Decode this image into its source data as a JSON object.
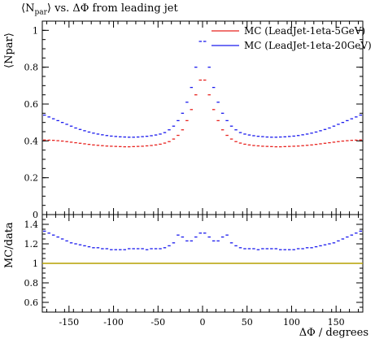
{
  "title_parts": {
    "npar": "⟨N",
    "sub": "par",
    "close": "⟩",
    "rest": " vs. ΔΦ from leading jet"
  },
  "chart_data": [
    {
      "type": "scatter",
      "panel": "main",
      "title": "⟨Npar⟩ vs. ΔΦ from leading jet",
      "ylabel": "⟨Npar⟩",
      "xlim": [
        -180,
        180
      ],
      "ylim": [
        0,
        1.05
      ],
      "yticks": [
        0,
        0.2,
        0.4,
        0.6,
        0.8,
        1
      ],
      "ytick_labels": [
        "0",
        "0.2",
        "0.4",
        "0.6",
        "0.8",
        "1"
      ],
      "legend_position": "top-right",
      "colors": {
        "red": "#e8231f",
        "blue": "#1a1aee"
      },
      "x": [
        -177.5,
        -172.5,
        -167.5,
        -162.5,
        -157.5,
        -152.5,
        -147.5,
        -142.5,
        -137.5,
        -132.5,
        -127.5,
        -122.5,
        -117.5,
        -112.5,
        -107.5,
        -102.5,
        -97.5,
        -92.5,
        -87.5,
        -82.5,
        -77.5,
        -72.5,
        -67.5,
        -62.5,
        -57.5,
        -52.5,
        -47.5,
        -42.5,
        -37.5,
        -32.5,
        -27.5,
        -22.5,
        -17.5,
        -12.5,
        -7.5,
        -2.5,
        2.5,
        7.5,
        12.5,
        17.5,
        22.5,
        27.5,
        32.5,
        37.5,
        42.5,
        47.5,
        52.5,
        57.5,
        62.5,
        67.5,
        72.5,
        77.5,
        82.5,
        87.5,
        92.5,
        97.5,
        102.5,
        107.5,
        112.5,
        117.5,
        122.5,
        127.5,
        132.5,
        137.5,
        142.5,
        147.5,
        152.5,
        157.5,
        162.5,
        167.5,
        172.5,
        177.5
      ],
      "series": [
        {
          "name": "MC (LeadJet-1eta-5GeV)",
          "color": "#e8231f",
          "values": [
            0.405,
            0.404,
            0.403,
            0.401,
            0.399,
            0.396,
            0.393,
            0.39,
            0.387,
            0.384,
            0.381,
            0.378,
            0.376,
            0.374,
            0.372,
            0.371,
            0.37,
            0.369,
            0.368,
            0.368,
            0.369,
            0.37,
            0.371,
            0.373,
            0.375,
            0.378,
            0.382,
            0.388,
            0.396,
            0.41,
            0.43,
            0.46,
            0.51,
            0.57,
            0.65,
            0.73,
            0.73,
            0.65,
            0.57,
            0.51,
            0.46,
            0.43,
            0.41,
            0.396,
            0.388,
            0.382,
            0.378,
            0.375,
            0.373,
            0.371,
            0.37,
            0.369,
            0.368,
            0.368,
            0.369,
            0.37,
            0.371,
            0.372,
            0.374,
            0.376,
            0.378,
            0.381,
            0.384,
            0.387,
            0.39,
            0.393,
            0.396,
            0.399,
            0.401,
            0.403,
            0.404,
            0.405
          ]
        },
        {
          "name": "MC (LeadJet-1eta-20GeV)",
          "color": "#1a1aee",
          "values": [
            0.54,
            0.53,
            0.52,
            0.51,
            0.5,
            0.49,
            0.48,
            0.47,
            0.462,
            0.455,
            0.448,
            0.442,
            0.437,
            0.433,
            0.429,
            0.426,
            0.424,
            0.422,
            0.421,
            0.42,
            0.42,
            0.421,
            0.423,
            0.425,
            0.428,
            0.432,
            0.437,
            0.445,
            0.46,
            0.48,
            0.51,
            0.55,
            0.61,
            0.69,
            0.8,
            0.94,
            0.94,
            0.8,
            0.69,
            0.61,
            0.55,
            0.51,
            0.48,
            0.46,
            0.445,
            0.437,
            0.432,
            0.428,
            0.425,
            0.423,
            0.421,
            0.42,
            0.42,
            0.421,
            0.422,
            0.424,
            0.426,
            0.429,
            0.433,
            0.437,
            0.442,
            0.448,
            0.455,
            0.462,
            0.47,
            0.48,
            0.49,
            0.5,
            0.51,
            0.52,
            0.53,
            0.54
          ]
        }
      ]
    },
    {
      "type": "scatter",
      "panel": "ratio",
      "ylabel": "MC/data",
      "xlabel": "ΔΦ / degrees",
      "xlim": [
        -180,
        180
      ],
      "ylim": [
        0.5,
        1.5
      ],
      "yticks": [
        0.6,
        0.8,
        1,
        1.2,
        1.4
      ],
      "ytick_labels": [
        "0.6",
        "0.8",
        "1",
        "1.2",
        "1.4"
      ],
      "xticks": [
        -150,
        -100,
        -50,
        0,
        50,
        100,
        150
      ],
      "xtick_labels": [
        "-150",
        "-100",
        "-50",
        "0",
        "50",
        "100",
        "150"
      ],
      "reference_line": {
        "y": 1.0,
        "color": "#b5a000"
      },
      "x": [
        -177.5,
        -172.5,
        -167.5,
        -162.5,
        -157.5,
        -152.5,
        -147.5,
        -142.5,
        -137.5,
        -132.5,
        -127.5,
        -122.5,
        -117.5,
        -112.5,
        -107.5,
        -102.5,
        -97.5,
        -92.5,
        -87.5,
        -82.5,
        -77.5,
        -72.5,
        -67.5,
        -62.5,
        -57.5,
        -52.5,
        -47.5,
        -42.5,
        -37.5,
        -32.5,
        -27.5,
        -22.5,
        -17.5,
        -12.5,
        -7.5,
        -2.5,
        2.5,
        7.5,
        12.5,
        17.5,
        22.5,
        27.5,
        32.5,
        37.5,
        42.5,
        47.5,
        52.5,
        57.5,
        62.5,
        67.5,
        72.5,
        77.5,
        82.5,
        87.5,
        92.5,
        97.5,
        102.5,
        107.5,
        112.5,
        117.5,
        122.5,
        127.5,
        132.5,
        137.5,
        142.5,
        147.5,
        152.5,
        157.5,
        162.5,
        167.5,
        172.5,
        177.5
      ],
      "series": [
        {
          "name": "",
          "color": "#1a1aee",
          "values": [
            1.33,
            1.31,
            1.29,
            1.27,
            1.25,
            1.23,
            1.21,
            1.2,
            1.19,
            1.18,
            1.17,
            1.16,
            1.16,
            1.15,
            1.15,
            1.14,
            1.14,
            1.14,
            1.14,
            1.15,
            1.15,
            1.15,
            1.15,
            1.14,
            1.15,
            1.15,
            1.15,
            1.16,
            1.18,
            1.21,
            1.29,
            1.27,
            1.23,
            1.23,
            1.27,
            1.31,
            1.31,
            1.27,
            1.23,
            1.23,
            1.27,
            1.29,
            1.21,
            1.18,
            1.16,
            1.15,
            1.15,
            1.15,
            1.14,
            1.15,
            1.15,
            1.15,
            1.15,
            1.14,
            1.14,
            1.14,
            1.14,
            1.15,
            1.15,
            1.16,
            1.16,
            1.17,
            1.18,
            1.19,
            1.2,
            1.21,
            1.23,
            1.25,
            1.27,
            1.29,
            1.31,
            1.33
          ]
        }
      ]
    }
  ]
}
